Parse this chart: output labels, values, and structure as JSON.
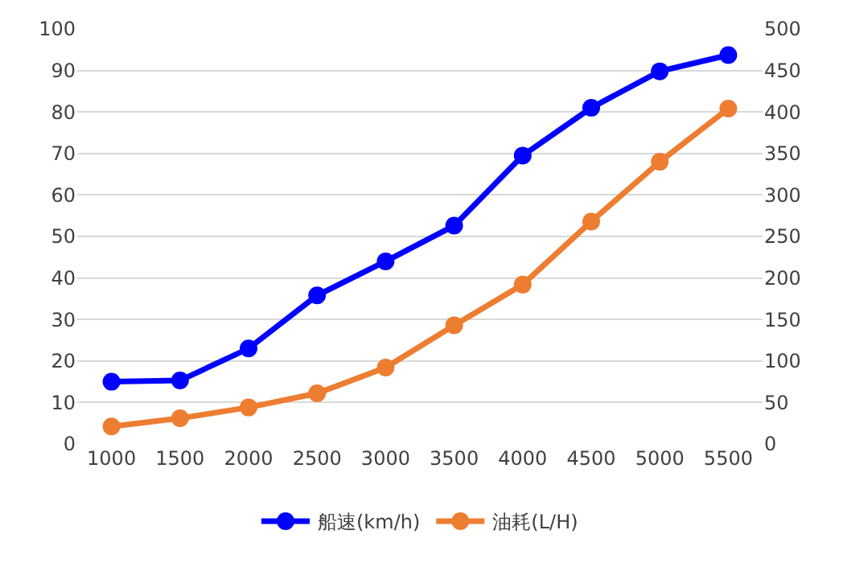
{
  "chart_data": {
    "type": "line",
    "categories": [
      "1000",
      "1500",
      "2000",
      "2500",
      "3000",
      "3500",
      "4000",
      "4500",
      "5000",
      "5500"
    ],
    "series": [
      {
        "name": "船速(km/h)",
        "color": "#0000ff",
        "values": [
          15,
          15.3,
          23,
          35.8,
          44,
          52.6,
          69.5,
          81,
          89.8,
          93.7
        ]
      },
      {
        "name": "油耗(L/H)",
        "color": "#ed7d31",
        "axis": "y2",
        "values": [
          21,
          31,
          44,
          61,
          92,
          143,
          192,
          268,
          340,
          404
        ]
      }
    ],
    "ylim": [
      0,
      100
    ],
    "yticks": [
      0,
      10,
      20,
      30,
      40,
      50,
      60,
      70,
      80,
      90,
      100
    ],
    "y2lim": [
      0,
      500
    ],
    "y2ticks": [
      0,
      50,
      100,
      150,
      200,
      250,
      300,
      350,
      400,
      450,
      500
    ],
    "grid": "y",
    "legend": "bottom",
    "marker": "circle",
    "line_style": "solid"
  }
}
